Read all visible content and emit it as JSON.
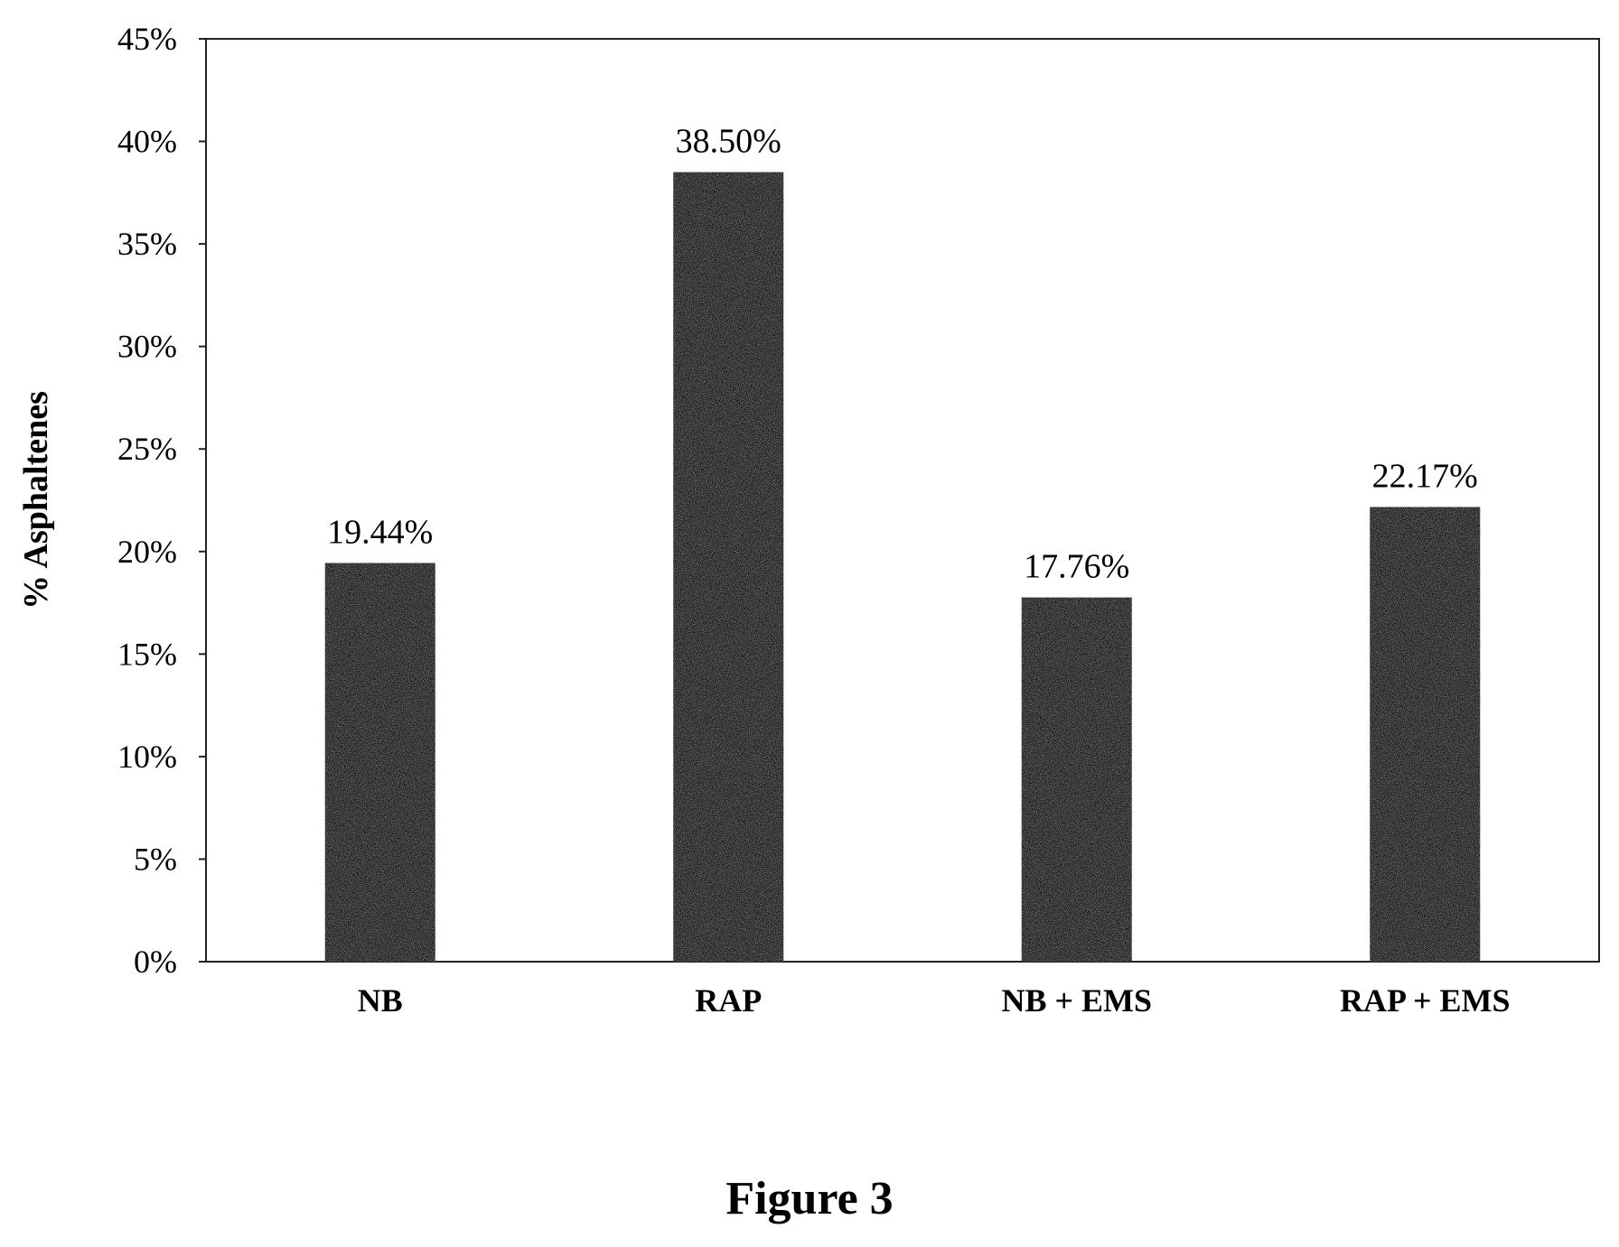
{
  "chart_data": {
    "type": "bar",
    "categories": [
      "NB",
      "RAP",
      "NB + EMS",
      "RAP + EMS"
    ],
    "values": [
      19.44,
      38.5,
      17.76,
      22.17
    ],
    "data_labels": [
      "19.44%",
      "38.50%",
      "17.76%",
      "22.17%"
    ],
    "ylabel": "% Asphaltenes",
    "ylim": [
      0,
      45
    ],
    "yticks": [
      0,
      5,
      10,
      15,
      20,
      25,
      30,
      35,
      40,
      45
    ],
    "ytick_labels": [
      "0%",
      "5%",
      "10%",
      "15%",
      "20%",
      "25%",
      "30%",
      "35%",
      "40%",
      "45%"
    ],
    "bar_color": "#1a1a1a",
    "grid": false,
    "legend": "none"
  },
  "figure": {
    "caption": "Figure 3"
  }
}
